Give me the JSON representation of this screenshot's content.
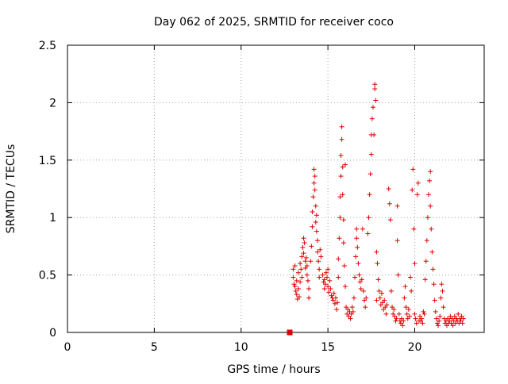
{
  "chart_data": {
    "type": "scatter",
    "title": "Day 062 of 2025, SRMTID for receiver coco",
    "xlabel": "GPS time / hours",
    "ylabel": "SRMTID / TECUs",
    "xlim": [
      0,
      24
    ],
    "ylim": [
      0,
      2.5
    ],
    "x_ticks": [
      0,
      5,
      10,
      15,
      20
    ],
    "x_tick_labels": [
      "0",
      "5",
      "10",
      "15",
      "20"
    ],
    "y_ticks": [
      0,
      0.5,
      1,
      1.5,
      2,
      2.5
    ],
    "y_tick_labels": [
      "0",
      "0.5",
      "1",
      "1.5",
      "2",
      "2.5"
    ],
    "grid": true,
    "series": [
      {
        "name": "SRMTID",
        "marker": "plus",
        "color": "#e00000",
        "points": [
          [
            12.8,
            0.0
          ],
          [
            13.0,
            0.55
          ],
          [
            13.0,
            0.48
          ],
          [
            13.05,
            0.42
          ],
          [
            13.1,
            0.58
          ],
          [
            13.1,
            0.4
          ],
          [
            13.15,
            0.36
          ],
          [
            13.2,
            0.33
          ],
          [
            13.2,
            0.45
          ],
          [
            13.25,
            0.29
          ],
          [
            13.3,
            0.38
          ],
          [
            13.3,
            0.52
          ],
          [
            13.35,
            0.31
          ],
          [
            13.4,
            0.44
          ],
          [
            13.4,
            0.6
          ],
          [
            13.45,
            0.55
          ],
          [
            13.5,
            0.66
          ],
          [
            13.5,
            0.48
          ],
          [
            13.55,
            0.74
          ],
          [
            13.6,
            0.82
          ],
          [
            13.6,
            0.69
          ],
          [
            13.65,
            0.78
          ],
          [
            13.7,
            0.62
          ],
          [
            13.7,
            0.56
          ],
          [
            13.75,
            0.65
          ],
          [
            13.8,
            0.58
          ],
          [
            13.8,
            0.5
          ],
          [
            13.85,
            0.45
          ],
          [
            13.9,
            0.38
          ],
          [
            13.9,
            0.3
          ],
          [
            14.0,
            0.62
          ],
          [
            14.05,
            0.75
          ],
          [
            14.1,
            0.92
          ],
          [
            14.1,
            1.05
          ],
          [
            14.15,
            1.18
          ],
          [
            14.2,
            1.3
          ],
          [
            14.2,
            1.42
          ],
          [
            14.25,
            1.36
          ],
          [
            14.25,
            1.24
          ],
          [
            14.3,
            1.1
          ],
          [
            14.3,
            0.96
          ],
          [
            14.35,
            0.88
          ],
          [
            14.35,
            1.02
          ],
          [
            14.4,
            0.8
          ],
          [
            14.4,
            0.7
          ],
          [
            14.45,
            0.62
          ],
          [
            14.5,
            0.55
          ],
          [
            14.5,
            0.48
          ],
          [
            14.55,
            0.72
          ],
          [
            14.6,
            0.66
          ],
          [
            14.7,
            0.5
          ],
          [
            14.75,
            0.44
          ],
          [
            14.8,
            0.38
          ],
          [
            14.8,
            0.46
          ],
          [
            14.85,
            0.42
          ],
          [
            14.9,
            0.52
          ],
          [
            14.95,
            0.48
          ],
          [
            15.0,
            0.55
          ],
          [
            15.0,
            0.4
          ],
          [
            15.05,
            0.35
          ],
          [
            15.1,
            0.45
          ],
          [
            15.15,
            0.38
          ],
          [
            15.2,
            0.32
          ],
          [
            15.25,
            0.3
          ],
          [
            15.3,
            0.28
          ],
          [
            15.35,
            0.34
          ],
          [
            15.4,
            0.25
          ],
          [
            15.45,
            0.3
          ],
          [
            15.5,
            0.2
          ],
          [
            15.55,
            0.26
          ],
          [
            15.6,
            0.48
          ],
          [
            15.6,
            0.64
          ],
          [
            15.65,
            0.82
          ],
          [
            15.7,
            1.0
          ],
          [
            15.7,
            1.18
          ],
          [
            15.75,
            1.36
          ],
          [
            15.75,
            1.54
          ],
          [
            15.8,
            1.68
          ],
          [
            15.8,
            1.79
          ],
          [
            15.85,
            1.44
          ],
          [
            15.85,
            1.2
          ],
          [
            15.9,
            0.98
          ],
          [
            15.9,
            0.78
          ],
          [
            15.95,
            0.58
          ],
          [
            16.0,
            1.46
          ],
          [
            16.0,
            0.4
          ],
          [
            16.05,
            0.22
          ],
          [
            16.1,
            0.16
          ],
          [
            16.15,
            0.2
          ],
          [
            16.2,
            0.14
          ],
          [
            16.25,
            0.18
          ],
          [
            16.3,
            0.12
          ],
          [
            16.35,
            0.16
          ],
          [
            16.4,
            0.22
          ],
          [
            16.45,
            0.18
          ],
          [
            16.5,
            0.3
          ],
          [
            16.55,
            0.48
          ],
          [
            16.6,
            0.66
          ],
          [
            16.65,
            0.82
          ],
          [
            16.65,
            0.9
          ],
          [
            16.7,
            0.74
          ],
          [
            16.75,
            0.6
          ],
          [
            16.8,
            0.5
          ],
          [
            16.85,
            0.44
          ],
          [
            16.9,
            0.38
          ],
          [
            16.95,
            0.46
          ],
          [
            17.0,
            0.9
          ],
          [
            17.05,
            0.36
          ],
          [
            17.1,
            0.28
          ],
          [
            17.15,
            0.22
          ],
          [
            17.2,
            0.3
          ],
          [
            17.3,
            0.86
          ],
          [
            17.35,
            1.0
          ],
          [
            17.4,
            1.2
          ],
          [
            17.45,
            1.38
          ],
          [
            17.5,
            1.55
          ],
          [
            17.5,
            1.72
          ],
          [
            17.55,
            1.86
          ],
          [
            17.6,
            1.96
          ],
          [
            17.65,
            1.72
          ],
          [
            17.7,
            2.12
          ],
          [
            17.7,
            2.16
          ],
          [
            17.75,
            2.02
          ],
          [
            17.8,
            0.7
          ],
          [
            17.8,
            0.28
          ],
          [
            17.85,
            0.6
          ],
          [
            17.9,
            0.46
          ],
          [
            17.95,
            0.36
          ],
          [
            18.0,
            0.3
          ],
          [
            18.05,
            0.24
          ],
          [
            18.1,
            0.34
          ],
          [
            18.15,
            0.26
          ],
          [
            18.2,
            0.2
          ],
          [
            18.25,
            0.28
          ],
          [
            18.3,
            0.22
          ],
          [
            18.35,
            0.16
          ],
          [
            18.4,
            0.24
          ],
          [
            18.5,
            1.25
          ],
          [
            18.55,
            1.12
          ],
          [
            18.6,
            0.98
          ],
          [
            18.65,
            0.36
          ],
          [
            18.7,
            0.22
          ],
          [
            18.75,
            0.16
          ],
          [
            18.8,
            0.2
          ],
          [
            18.85,
            0.14
          ],
          [
            18.9,
            0.1
          ],
          [
            18.95,
            0.12
          ],
          [
            19.0,
            1.1
          ],
          [
            19.0,
            0.8
          ],
          [
            19.05,
            0.5
          ],
          [
            19.1,
            0.16
          ],
          [
            19.15,
            0.1
          ],
          [
            19.2,
            0.08
          ],
          [
            19.25,
            0.12
          ],
          [
            19.3,
            0.06
          ],
          [
            19.35,
            0.1
          ],
          [
            19.4,
            0.3
          ],
          [
            19.45,
            0.4
          ],
          [
            19.5,
            0.22
          ],
          [
            19.55,
            0.16
          ],
          [
            19.6,
            0.12
          ],
          [
            19.65,
            0.2
          ],
          [
            19.7,
            0.14
          ],
          [
            19.75,
            0.48
          ],
          [
            19.8,
            0.36
          ],
          [
            19.85,
            1.24
          ],
          [
            19.9,
            1.42
          ],
          [
            19.95,
            0.9
          ],
          [
            20.0,
            0.6
          ],
          [
            20.0,
            0.16
          ],
          [
            20.05,
            0.12
          ],
          [
            20.1,
            0.08
          ],
          [
            20.15,
            1.2
          ],
          [
            20.2,
            1.3
          ],
          [
            20.25,
            0.1
          ],
          [
            20.3,
            0.14
          ],
          [
            20.35,
            0.1
          ],
          [
            20.4,
            0.12
          ],
          [
            20.45,
            0.08
          ],
          [
            20.5,
            0.18
          ],
          [
            20.55,
            0.16
          ],
          [
            20.6,
            0.46
          ],
          [
            20.65,
            0.62
          ],
          [
            20.7,
            0.8
          ],
          [
            20.75,
            1.0
          ],
          [
            20.8,
            1.2
          ],
          [
            20.85,
            1.32
          ],
          [
            20.9,
            1.4
          ],
          [
            20.9,
            1.1
          ],
          [
            20.95,
            0.9
          ],
          [
            21.0,
            0.7
          ],
          [
            21.05,
            0.55
          ],
          [
            21.1,
            0.42
          ],
          [
            21.15,
            0.28
          ],
          [
            21.2,
            0.18
          ],
          [
            21.25,
            0.12
          ],
          [
            21.3,
            0.08
          ],
          [
            21.35,
            0.06
          ],
          [
            21.4,
            0.1
          ],
          [
            21.45,
            0.14
          ],
          [
            21.5,
            0.3
          ],
          [
            21.55,
            0.42
          ],
          [
            21.6,
            0.36
          ],
          [
            21.65,
            0.22
          ],
          [
            21.7,
            0.12
          ],
          [
            21.75,
            0.08
          ],
          [
            21.8,
            0.1
          ],
          [
            21.85,
            0.06
          ],
          [
            21.9,
            0.12
          ],
          [
            21.95,
            0.08
          ],
          [
            22.0,
            0.1
          ],
          [
            22.05,
            0.14
          ],
          [
            22.1,
            0.08
          ],
          [
            22.15,
            0.12
          ],
          [
            22.2,
            0.06
          ],
          [
            22.25,
            0.1
          ],
          [
            22.3,
            0.14
          ],
          [
            22.35,
            0.08
          ],
          [
            22.4,
            0.12
          ],
          [
            22.45,
            0.1
          ],
          [
            22.5,
            0.16
          ],
          [
            22.55,
            0.08
          ],
          [
            22.6,
            0.12
          ],
          [
            22.65,
            0.1
          ],
          [
            22.7,
            0.14
          ],
          [
            22.75,
            0.08
          ],
          [
            22.8,
            0.12
          ]
        ]
      }
    ]
  }
}
